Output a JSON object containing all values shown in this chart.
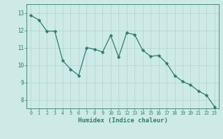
{
  "x": [
    0,
    1,
    2,
    3,
    4,
    5,
    6,
    7,
    8,
    9,
    10,
    11,
    12,
    13,
    14,
    15,
    16,
    17,
    18,
    19,
    20,
    21,
    22,
    23
  ],
  "y": [
    12.85,
    12.6,
    11.95,
    11.95,
    10.25,
    9.75,
    9.4,
    11.0,
    10.9,
    10.75,
    11.7,
    10.45,
    11.85,
    11.75,
    10.85,
    10.5,
    10.55,
    10.1,
    9.4,
    9.05,
    8.85,
    8.5,
    8.25,
    7.6
  ],
  "xlabel": "Humidex (Indice chaleur)",
  "ylim": [
    7.5,
    13.5
  ],
  "xlim": [
    -0.5,
    23.5
  ],
  "yticks": [
    8,
    9,
    10,
    11,
    12,
    13
  ],
  "xticks": [
    0,
    1,
    2,
    3,
    4,
    5,
    6,
    7,
    8,
    9,
    10,
    11,
    12,
    13,
    14,
    15,
    16,
    17,
    18,
    19,
    20,
    21,
    22,
    23
  ],
  "line_color": "#2e7d6e",
  "marker_color": "#2e7d6e",
  "bg_color": "#cdeae6",
  "grid_color": "#aed4cf",
  "tick_color": "#2e7d6e",
  "label_color": "#2e7d6e"
}
